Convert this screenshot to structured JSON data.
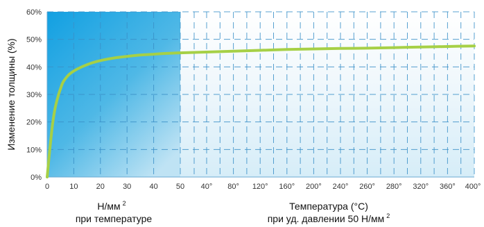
{
  "chart_data": {
    "type": "line",
    "ylabel": "Изменение толщины (%)",
    "y_ticks": [
      "0%",
      "10%",
      "20%",
      "30%",
      "40%",
      "50%",
      "60%"
    ],
    "ylim": [
      0,
      60
    ],
    "pressure_ticks": [
      "0",
      "10",
      "20",
      "30",
      "40",
      "50"
    ],
    "temperature_ticks": [
      "40°",
      "80°",
      "120°",
      "160°",
      "200°",
      "240°",
      "260°",
      "280°",
      "320°",
      "360°",
      "400°"
    ],
    "xlabel_left": {
      "line1": "Н/мм",
      "sup": "2",
      "line2": "при температуре"
    },
    "xlabel_right": {
      "line1": "Температура (°C)",
      "line2": "при уд. давлении 50 Н/мм",
      "sup": "2"
    },
    "series": [
      {
        "color": "#a6d046",
        "pressure_points": [
          [
            0,
            0
          ],
          [
            0.4,
            4
          ],
          [
            1,
            10
          ],
          [
            2,
            19
          ],
          [
            3,
            25
          ],
          [
            4,
            29
          ],
          [
            5,
            32
          ],
          [
            6,
            34.5
          ],
          [
            8,
            37
          ],
          [
            10,
            38.5
          ],
          [
            13,
            40
          ],
          [
            17,
            41.5
          ],
          [
            21,
            42.5
          ],
          [
            25,
            43.2
          ],
          [
            30,
            43.8
          ],
          [
            35,
            44.3
          ],
          [
            40,
            44.6
          ],
          [
            45,
            44.9
          ],
          [
            50,
            45.1
          ]
        ],
        "temperature_points": [
          [
            50,
            45.1
          ],
          [
            80,
            45.7
          ],
          [
            120,
            46.0
          ],
          [
            160,
            46.3
          ],
          [
            200,
            46.5
          ],
          [
            240,
            46.7
          ],
          [
            260,
            46.8
          ],
          [
            280,
            47.0
          ],
          [
            320,
            47.2
          ],
          [
            360,
            47.4
          ],
          [
            400,
            47.6
          ]
        ]
      }
    ],
    "grid": true,
    "colors": {
      "background_left": "#22a6dd",
      "grid": "#3a90c8",
      "line": "#a6d046"
    }
  }
}
